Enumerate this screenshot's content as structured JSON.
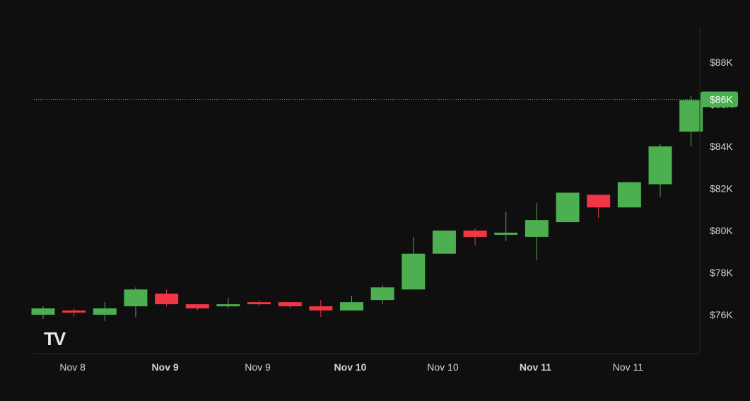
{
  "colors": {
    "background": "#0f0f0f",
    "up": "#4caf50",
    "down": "#f23645",
    "axis_text": "#d1d4dc",
    "axis_line": "#2a2a2a",
    "price_line": "#4caf50",
    "last_price_label_text": "#ffffff"
  },
  "watermark": "TV",
  "chart_data": {
    "type": "candlestick",
    "y_unit": "USD",
    "ylim": [
      74500,
      90000
    ],
    "y_ticks": [
      76000,
      78000,
      80000,
      82000,
      84000,
      86000,
      88000
    ],
    "y_tick_labels": [
      "$76K",
      "$78K",
      "$80K",
      "$82K",
      "$84K",
      "$86K",
      "$88K"
    ],
    "x_tick_labels": [
      {
        "label": "Nov 8",
        "bold": false,
        "index": 1
      },
      {
        "label": "Nov 9",
        "bold": true,
        "index": 4
      },
      {
        "label": "Nov 9",
        "bold": false,
        "index": 7
      },
      {
        "label": "Nov 10",
        "bold": true,
        "index": 10
      },
      {
        "label": "Nov 10",
        "bold": false,
        "index": 13
      },
      {
        "label": "Nov 11",
        "bold": true,
        "index": 16
      },
      {
        "label": "Nov 11",
        "bold": false,
        "index": 19
      }
    ],
    "last_price_label": "$86K",
    "last_price": 86200,
    "candles": [
      {
        "open": 76000,
        "high": 76400,
        "low": 75800,
        "close": 76300
      },
      {
        "open": 76200,
        "high": 76300,
        "low": 75900,
        "close": 76100
      },
      {
        "open": 76000,
        "high": 76600,
        "low": 75700,
        "close": 76300
      },
      {
        "open": 76400,
        "high": 77300,
        "low": 75900,
        "close": 77200
      },
      {
        "open": 77000,
        "high": 77200,
        "low": 76400,
        "close": 76500
      },
      {
        "open": 76500,
        "high": 76500,
        "low": 76200,
        "close": 76300
      },
      {
        "open": 76400,
        "high": 76800,
        "low": 76300,
        "close": 76500
      },
      {
        "open": 76600,
        "high": 76700,
        "low": 76400,
        "close": 76500
      },
      {
        "open": 76600,
        "high": 76600,
        "low": 76300,
        "close": 76400
      },
      {
        "open": 76400,
        "high": 76700,
        "low": 75900,
        "close": 76200
      },
      {
        "open": 76200,
        "high": 76900,
        "low": 76200,
        "close": 76600
      },
      {
        "open": 76700,
        "high": 77400,
        "low": 76500,
        "close": 77300
      },
      {
        "open": 77200,
        "high": 79700,
        "low": 77200,
        "close": 78900
      },
      {
        "open": 78900,
        "high": 80000,
        "low": 78900,
        "close": 80000
      },
      {
        "open": 80000,
        "high": 80100,
        "low": 79300,
        "close": 79700
      },
      {
        "open": 79800,
        "high": 80900,
        "low": 79500,
        "close": 79900
      },
      {
        "open": 79700,
        "high": 81300,
        "low": 78600,
        "close": 80500
      },
      {
        "open": 80400,
        "high": 81800,
        "low": 80400,
        "close": 81800
      },
      {
        "open": 81700,
        "high": 81700,
        "low": 80600,
        "close": 81100
      },
      {
        "open": 81100,
        "high": 82300,
        "low": 81100,
        "close": 82300
      },
      {
        "open": 82200,
        "high": 84100,
        "low": 81600,
        "close": 84000
      },
      {
        "open": 84700,
        "high": 86400,
        "low": 84000,
        "close": 86200
      }
    ]
  }
}
